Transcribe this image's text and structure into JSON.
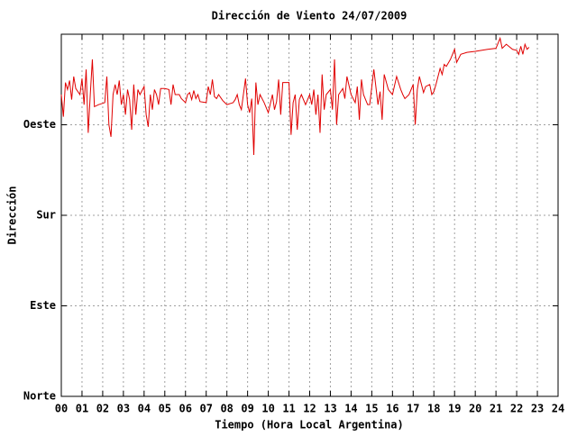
{
  "chart_data": {
    "type": "line",
    "title": "Dirección de Viento 24/07/2009",
    "xlabel": "Tiempo (Hora Local Argentina)",
    "ylabel": "Dirección",
    "color": "#e00000",
    "grid": true,
    "xlim": [
      0,
      24
    ],
    "ylim": [
      0,
      360
    ],
    "xticks": [
      {
        "value": 0,
        "label": "00"
      },
      {
        "value": 1,
        "label": "01"
      },
      {
        "value": 2,
        "label": "02"
      },
      {
        "value": 3,
        "label": "03"
      },
      {
        "value": 4,
        "label": "04"
      },
      {
        "value": 5,
        "label": "05"
      },
      {
        "value": 6,
        "label": "06"
      },
      {
        "value": 7,
        "label": "07"
      },
      {
        "value": 8,
        "label": "08"
      },
      {
        "value": 9,
        "label": "09"
      },
      10,
      11,
      12,
      13,
      14,
      15,
      16,
      17,
      18,
      19,
      20,
      21,
      22,
      23,
      24
    ],
    "yticks": [
      {
        "value": 0,
        "label": "Norte"
      },
      {
        "value": 90,
        "label": "Este"
      },
      {
        "value": 180,
        "label": "Sur"
      },
      {
        "value": 270,
        "label": "Oeste"
      }
    ],
    "x": [
      0.0,
      0.1,
      0.2,
      0.3,
      0.4,
      0.5,
      0.6,
      0.7,
      0.9,
      1.0,
      1.1,
      1.2,
      1.3,
      1.4,
      1.5,
      1.6,
      1.8,
      2.1,
      2.2,
      2.3,
      2.4,
      2.5,
      2.6,
      2.7,
      2.8,
      2.9,
      3.0,
      3.1,
      3.2,
      3.3,
      3.4,
      3.5,
      3.6,
      3.7,
      3.8,
      4.0,
      4.1,
      4.2,
      4.3,
      4.4,
      4.5,
      4.6,
      4.7,
      4.8,
      5.0,
      5.2,
      5.3,
      5.4,
      5.5,
      5.7,
      5.8,
      6.0,
      6.1,
      6.2,
      6.3,
      6.4,
      6.5,
      6.6,
      6.7,
      7.0,
      7.1,
      7.2,
      7.3,
      7.4,
      7.5,
      7.6,
      7.8,
      8.0,
      8.3,
      8.4,
      8.5,
      8.6,
      8.7,
      8.9,
      9.0,
      9.1,
      9.2,
      9.3,
      9.4,
      9.5,
      9.6,
      9.8,
      10.0,
      10.2,
      10.3,
      10.4,
      10.5,
      10.6,
      10.7,
      11.0,
      11.1,
      11.2,
      11.3,
      11.4,
      11.5,
      11.6,
      11.8,
      12.0,
      12.1,
      12.2,
      12.3,
      12.4,
      12.5,
      12.6,
      12.7,
      12.8,
      13.0,
      13.1,
      13.2,
      13.3,
      13.4,
      13.6,
      13.7,
      13.8,
      14.0,
      14.2,
      14.3,
      14.4,
      14.5,
      14.6,
      14.8,
      14.9,
      15.1,
      15.3,
      15.4,
      15.5,
      15.6,
      15.8,
      16.0,
      16.2,
      16.4,
      16.5,
      16.6,
      16.8,
      17.0,
      17.1,
      17.2,
      17.3,
      17.5,
      17.6,
      17.8,
      17.9,
      18.0,
      18.1,
      18.2,
      18.3,
      18.4,
      18.5,
      18.6,
      18.8,
      19.0,
      19.1,
      19.3,
      19.6,
      20.0,
      20.3,
      20.6,
      21.0,
      21.2,
      21.3,
      21.5,
      21.8,
      22.0,
      22.1,
      22.2,
      22.3,
      22.4,
      22.5,
      22.6
    ],
    "values": [
      300,
      278,
      312,
      305,
      314,
      295,
      318,
      306,
      300,
      316,
      290,
      325,
      262,
      300,
      335,
      288,
      290,
      292,
      318,
      270,
      258,
      300,
      310,
      300,
      314,
      290,
      300,
      280,
      305,
      295,
      265,
      310,
      280,
      305,
      300,
      308,
      280,
      268,
      300,
      285,
      305,
      300,
      290,
      306,
      306,
      305,
      290,
      310,
      300,
      300,
      296,
      292,
      300,
      302,
      295,
      304,
      296,
      300,
      293,
      292,
      308,
      300,
      315,
      298,
      296,
      300,
      294,
      290,
      292,
      295,
      300,
      290,
      285,
      316,
      290,
      282,
      296,
      240,
      312,
      290,
      300,
      292,
      282,
      300,
      285,
      293,
      315,
      280,
      312,
      312,
      260,
      292,
      300,
      265,
      295,
      300,
      290,
      300,
      290,
      305,
      280,
      300,
      262,
      320,
      285,
      300,
      305,
      285,
      335,
      270,
      300,
      306,
      296,
      318,
      300,
      292,
      308,
      275,
      315,
      300,
      290,
      290,
      325,
      290,
      303,
      275,
      320,
      305,
      300,
      318,
      305,
      300,
      296,
      300,
      310,
      270,
      305,
      318,
      302,
      308,
      310,
      300,
      303,
      310,
      318,
      326,
      320,
      330,
      328,
      335,
      345,
      332,
      340,
      342,
      343,
      344,
      345,
      346,
      356,
      346,
      350,
      345,
      344,
      340,
      348,
      340,
      350,
      345,
      347
    ]
  }
}
